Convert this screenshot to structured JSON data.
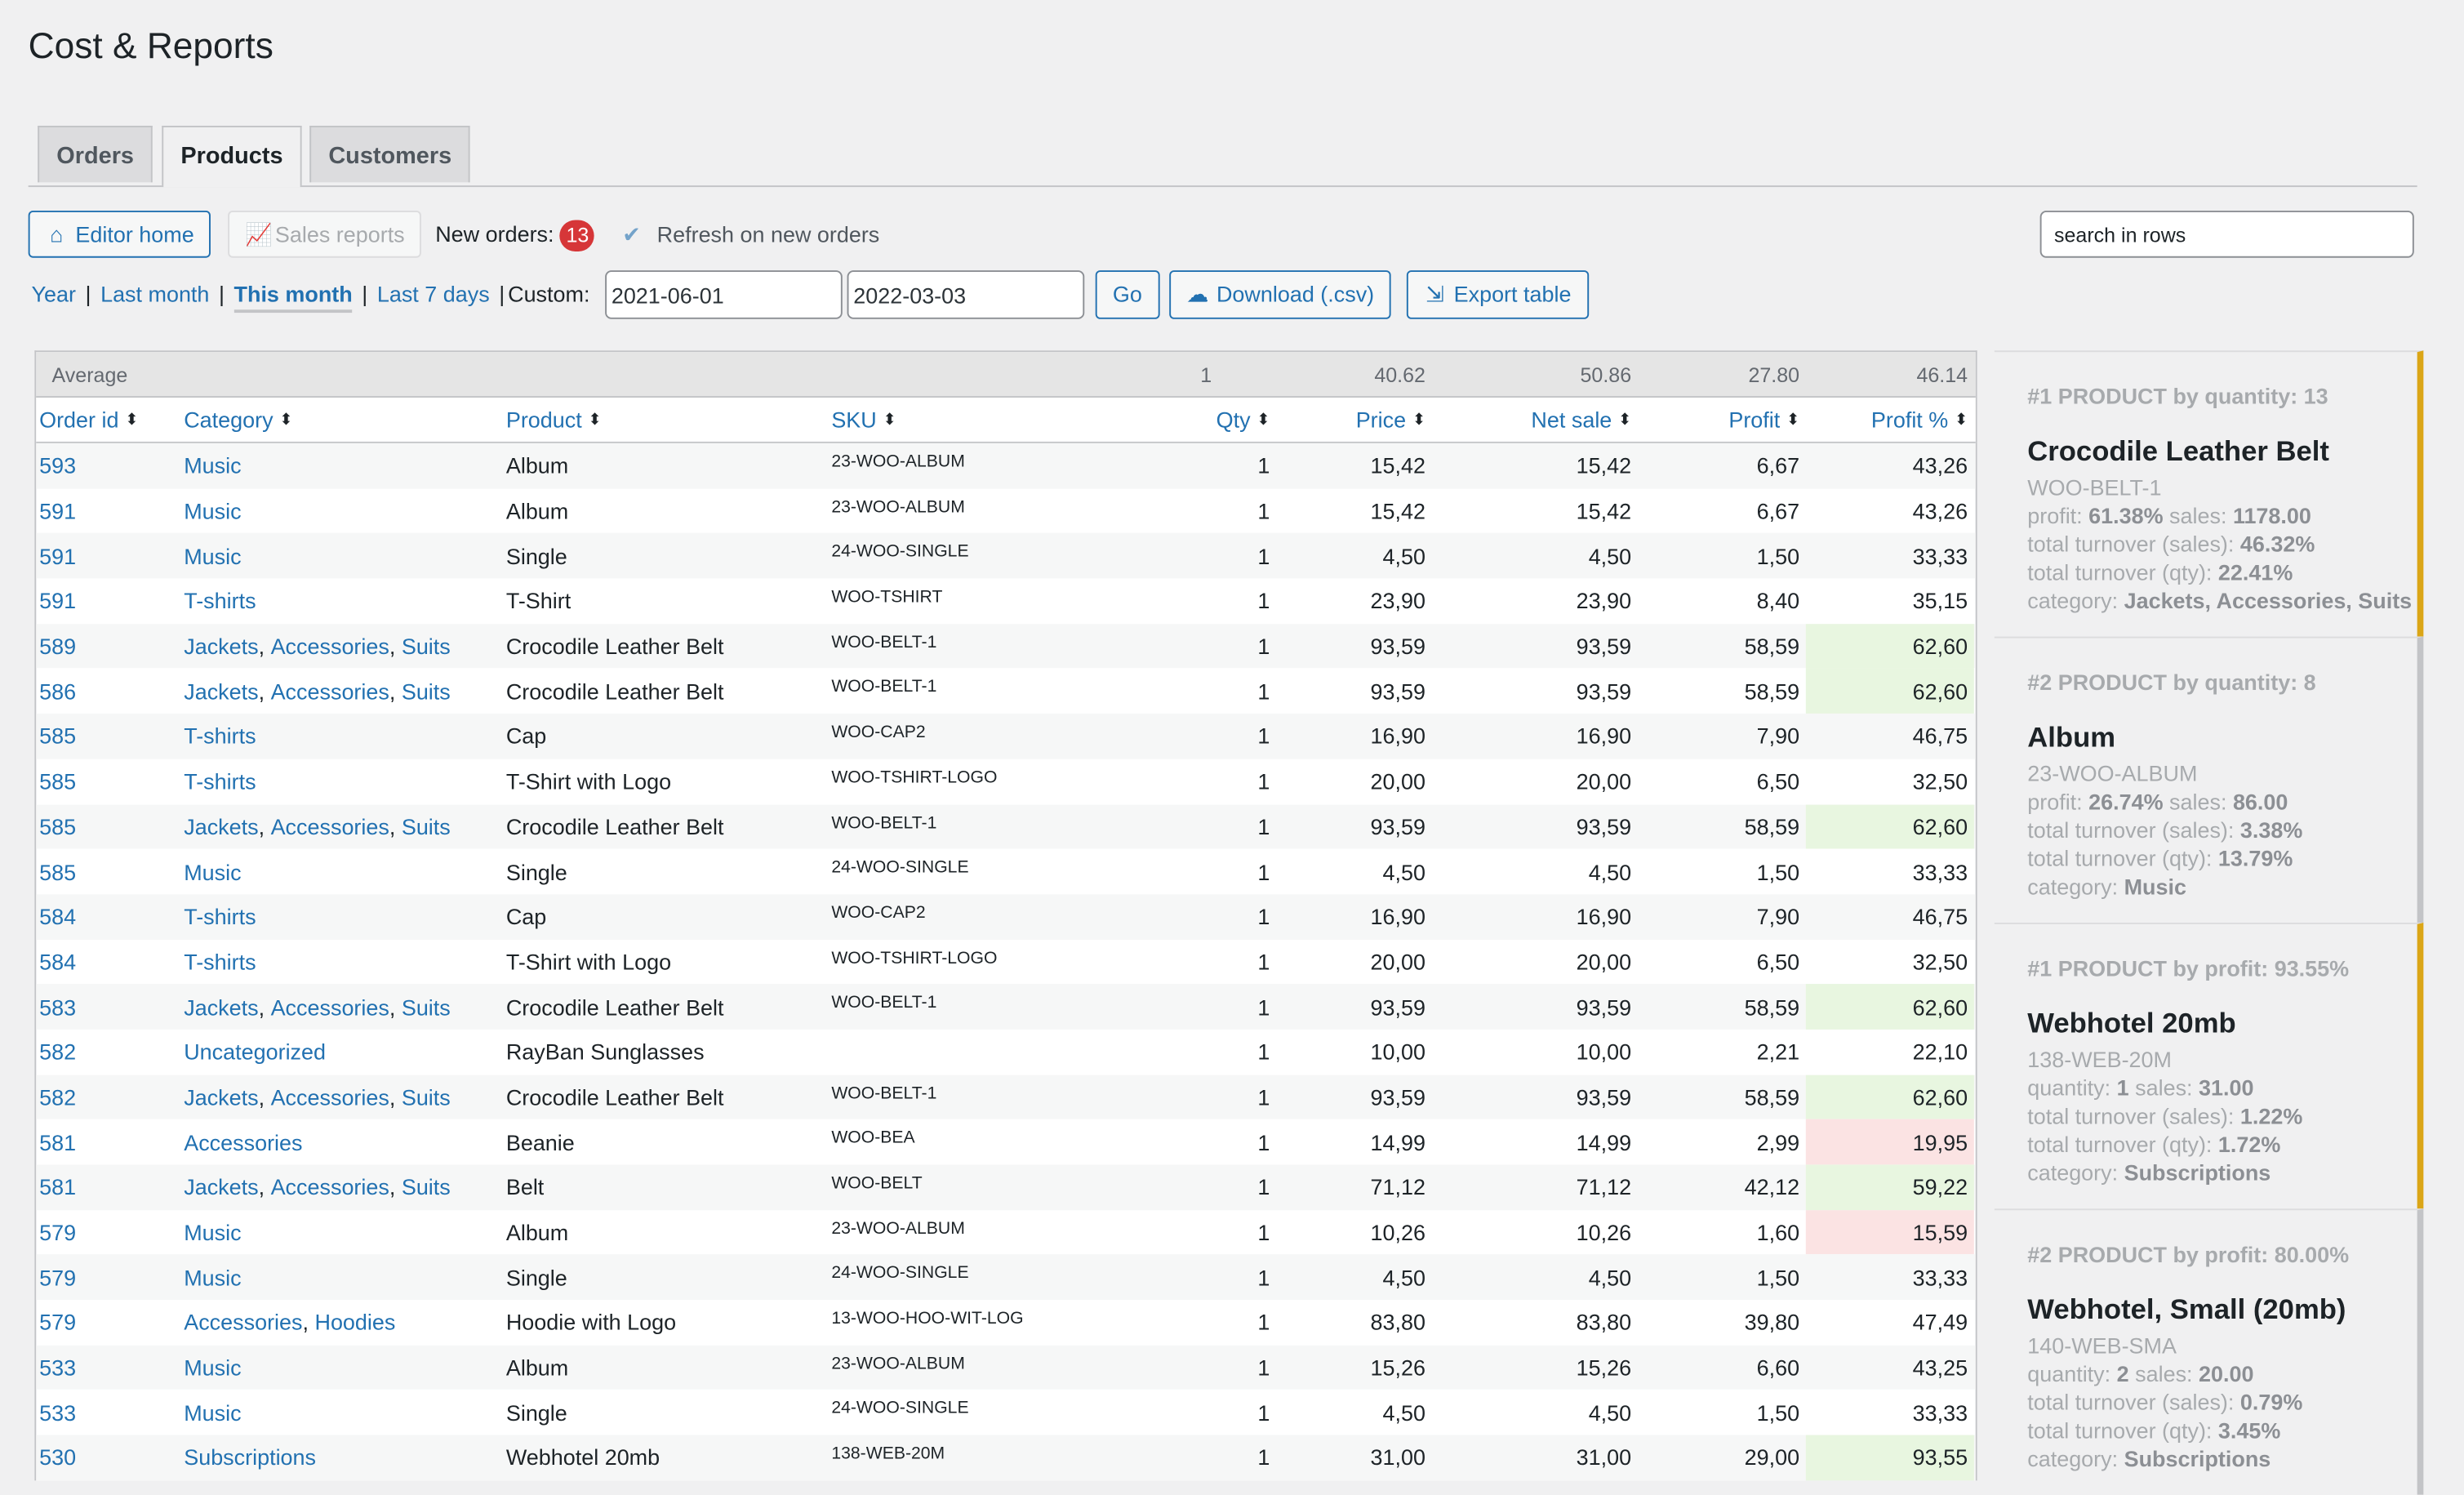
{
  "page": {
    "title": "Cost & Reports"
  },
  "tabs": [
    {
      "label": "Orders"
    },
    {
      "label": "Products"
    },
    {
      "label": "Customers"
    }
  ],
  "toolbar": {
    "editor_home": "Editor home",
    "sales_reports": "Sales reports",
    "new_orders_label": "New orders:",
    "new_orders_count": "13",
    "refresh_label": "Refresh on new orders",
    "search_placeholder": "search in rows"
  },
  "ranges": {
    "year": "Year",
    "last_month": "Last month",
    "this_month": "This month",
    "last_7_days": "Last 7 days",
    "custom_label": "Custom:",
    "date_from": "2021-06-01",
    "date_to": "2022-03-03",
    "go": "Go",
    "download": "Download (.csv)",
    "export": "Export table"
  },
  "table": {
    "average": {
      "label": "Average",
      "qty": "1",
      "price": "40.62",
      "net": "50.86",
      "profit": "27.80",
      "pct": "46.14"
    },
    "headers": {
      "id": "Order id",
      "category": "Category",
      "product": "Product",
      "sku": "SKU",
      "qty": "Qty",
      "price": "Price",
      "net": "Net sale",
      "profit": "Profit",
      "pct": "Profit %"
    },
    "rows": [
      {
        "id": "593",
        "categories": [
          "Music"
        ],
        "product": "Album",
        "sku": "23-WOO-ALBUM",
        "qty": "1",
        "price": "15,42",
        "net": "15,42",
        "profit": "6,67",
        "pct": "43,26",
        "hl": ""
      },
      {
        "id": "591",
        "categories": [
          "Music"
        ],
        "product": "Album",
        "sku": "23-WOO-ALBUM",
        "qty": "1",
        "price": "15,42",
        "net": "15,42",
        "profit": "6,67",
        "pct": "43,26",
        "hl": ""
      },
      {
        "id": "591",
        "categories": [
          "Music"
        ],
        "product": "Single",
        "sku": "24-WOO-SINGLE",
        "qty": "1",
        "price": "4,50",
        "net": "4,50",
        "profit": "1,50",
        "pct": "33,33",
        "hl": ""
      },
      {
        "id": "591",
        "categories": [
          "T-shirts"
        ],
        "product": "T-Shirt",
        "sku": "WOO-TSHIRT",
        "qty": "1",
        "price": "23,90",
        "net": "23,90",
        "profit": "8,40",
        "pct": "35,15",
        "hl": ""
      },
      {
        "id": "589",
        "categories": [
          "Jackets",
          "Accessories",
          "Suits"
        ],
        "product": "Crocodile Leather Belt",
        "sku": "WOO-BELT-1",
        "qty": "1",
        "price": "93,59",
        "net": "93,59",
        "profit": "58,59",
        "pct": "62,60",
        "hl": "hi"
      },
      {
        "id": "586",
        "categories": [
          "Jackets",
          "Accessories",
          "Suits"
        ],
        "product": "Crocodile Leather Belt",
        "sku": "WOO-BELT-1",
        "qty": "1",
        "price": "93,59",
        "net": "93,59",
        "profit": "58,59",
        "pct": "62,60",
        "hl": "hi"
      },
      {
        "id": "585",
        "categories": [
          "T-shirts"
        ],
        "product": "Cap",
        "sku": "WOO-CAP2",
        "qty": "1",
        "price": "16,90",
        "net": "16,90",
        "profit": "7,90",
        "pct": "46,75",
        "hl": ""
      },
      {
        "id": "585",
        "categories": [
          "T-shirts"
        ],
        "product": "T-Shirt with Logo",
        "sku": "WOO-TSHIRT-LOGO",
        "qty": "1",
        "price": "20,00",
        "net": "20,00",
        "profit": "6,50",
        "pct": "32,50",
        "hl": ""
      },
      {
        "id": "585",
        "categories": [
          "Jackets",
          "Accessories",
          "Suits"
        ],
        "product": "Crocodile Leather Belt",
        "sku": "WOO-BELT-1",
        "qty": "1",
        "price": "93,59",
        "net": "93,59",
        "profit": "58,59",
        "pct": "62,60",
        "hl": "hi"
      },
      {
        "id": "585",
        "categories": [
          "Music"
        ],
        "product": "Single",
        "sku": "24-WOO-SINGLE",
        "qty": "1",
        "price": "4,50",
        "net": "4,50",
        "profit": "1,50",
        "pct": "33,33",
        "hl": ""
      },
      {
        "id": "584",
        "categories": [
          "T-shirts"
        ],
        "product": "Cap",
        "sku": "WOO-CAP2",
        "qty": "1",
        "price": "16,90",
        "net": "16,90",
        "profit": "7,90",
        "pct": "46,75",
        "hl": ""
      },
      {
        "id": "584",
        "categories": [
          "T-shirts"
        ],
        "product": "T-Shirt with Logo",
        "sku": "WOO-TSHIRT-LOGO",
        "qty": "1",
        "price": "20,00",
        "net": "20,00",
        "profit": "6,50",
        "pct": "32,50",
        "hl": ""
      },
      {
        "id": "583",
        "categories": [
          "Jackets",
          "Accessories",
          "Suits"
        ],
        "product": "Crocodile Leather Belt",
        "sku": "WOO-BELT-1",
        "qty": "1",
        "price": "93,59",
        "net": "93,59",
        "profit": "58,59",
        "pct": "62,60",
        "hl": "hi"
      },
      {
        "id": "582",
        "categories": [
          "Uncategorized"
        ],
        "product": "RayBan Sunglasses",
        "sku": "",
        "qty": "1",
        "price": "10,00",
        "net": "10,00",
        "profit": "2,21",
        "pct": "22,10",
        "hl": ""
      },
      {
        "id": "582",
        "categories": [
          "Jackets",
          "Accessories",
          "Suits"
        ],
        "product": "Crocodile Leather Belt",
        "sku": "WOO-BELT-1",
        "qty": "1",
        "price": "93,59",
        "net": "93,59",
        "profit": "58,59",
        "pct": "62,60",
        "hl": "hi"
      },
      {
        "id": "581",
        "categories": [
          "Accessories"
        ],
        "product": "Beanie",
        "sku": "WOO-BEA",
        "qty": "1",
        "price": "14,99",
        "net": "14,99",
        "profit": "2,99",
        "pct": "19,95",
        "hl": "lo"
      },
      {
        "id": "581",
        "categories": [
          "Jackets",
          "Accessories",
          "Suits"
        ],
        "product": "Belt",
        "sku": "WOO-BELT",
        "qty": "1",
        "price": "71,12",
        "net": "71,12",
        "profit": "42,12",
        "pct": "59,22",
        "hl": "hi"
      },
      {
        "id": "579",
        "categories": [
          "Music"
        ],
        "product": "Album",
        "sku": "23-WOO-ALBUM",
        "qty": "1",
        "price": "10,26",
        "net": "10,26",
        "profit": "1,60",
        "pct": "15,59",
        "hl": "lo"
      },
      {
        "id": "579",
        "categories": [
          "Music"
        ],
        "product": "Single",
        "sku": "24-WOO-SINGLE",
        "qty": "1",
        "price": "4,50",
        "net": "4,50",
        "profit": "1,50",
        "pct": "33,33",
        "hl": ""
      },
      {
        "id": "579",
        "categories": [
          "Accessories",
          "Hoodies"
        ],
        "product": "Hoodie with Logo",
        "sku": "13-WOO-HOO-WIT-LOG",
        "qty": "1",
        "price": "83,80",
        "net": "83,80",
        "profit": "39,80",
        "pct": "47,49",
        "hl": ""
      },
      {
        "id": "533",
        "categories": [
          "Music"
        ],
        "product": "Album",
        "sku": "23-WOO-ALBUM",
        "qty": "1",
        "price": "15,26",
        "net": "15,26",
        "profit": "6,60",
        "pct": "43,25",
        "hl": ""
      },
      {
        "id": "533",
        "categories": [
          "Music"
        ],
        "product": "Single",
        "sku": "24-WOO-SINGLE",
        "qty": "1",
        "price": "4,50",
        "net": "4,50",
        "profit": "1,50",
        "pct": "33,33",
        "hl": ""
      },
      {
        "id": "530",
        "categories": [
          "Subscriptions"
        ],
        "product": "Webhotel 20mb",
        "sku": "138-WEB-20M",
        "qty": "1",
        "price": "31,00",
        "net": "31,00",
        "profit": "29,00",
        "pct": "93,55",
        "hl": "hi"
      }
    ]
  },
  "top_products": [
    {
      "heading": "#1 PRODUCT by quantity: 13",
      "name": "Crocodile Leather Belt",
      "sku": "WOO-BELT-1",
      "lines": [
        {
          "prefix": "profit: ",
          "v1": "61.38%",
          "mid": " sales: ",
          "v2": "1178.00"
        },
        {
          "prefix": "total turnover (sales): ",
          "v1": "46.32%",
          "mid": "",
          "v2": ""
        },
        {
          "prefix": "total turnover (qty): ",
          "v1": "22.41%",
          "mid": "",
          "v2": ""
        },
        {
          "prefix": "category: ",
          "v1": "Jackets, Accessories, Suits",
          "mid": "",
          "v2": ""
        }
      ],
      "accent": "gold"
    },
    {
      "heading": "#2 PRODUCT by quantity: 8",
      "name": "Album",
      "sku": "23-WOO-ALBUM",
      "lines": [
        {
          "prefix": "profit: ",
          "v1": "26.74%",
          "mid": " sales: ",
          "v2": "86.00"
        },
        {
          "prefix": "total turnover (sales): ",
          "v1": "3.38%",
          "mid": "",
          "v2": ""
        },
        {
          "prefix": "total turnover (qty): ",
          "v1": "13.79%",
          "mid": "",
          "v2": ""
        },
        {
          "prefix": "category: ",
          "v1": "Music",
          "mid": "",
          "v2": ""
        }
      ],
      "accent": "gray"
    },
    {
      "heading": "#1 PRODUCT by profit: 93.55%",
      "name": "Webhotel 20mb",
      "sku": "138-WEB-20M",
      "lines": [
        {
          "prefix": "quantity: ",
          "v1": "1",
          "mid": " sales: ",
          "v2": "31.00"
        },
        {
          "prefix": "total turnover (sales): ",
          "v1": "1.22%",
          "mid": "",
          "v2": ""
        },
        {
          "prefix": "total turnover (qty): ",
          "v1": "1.72%",
          "mid": "",
          "v2": ""
        },
        {
          "prefix": "category: ",
          "v1": "Subscriptions",
          "mid": "",
          "v2": ""
        }
      ],
      "accent": "gold"
    },
    {
      "heading": "#2 PRODUCT by profit: 80.00%",
      "name": "Webhotel, Small (20mb)",
      "sku": "140-WEB-SMA",
      "lines": [
        {
          "prefix": "quantity: ",
          "v1": "2",
          "mid": " sales: ",
          "v2": "20.00"
        },
        {
          "prefix": "total turnover (sales): ",
          "v1": "0.79%",
          "mid": "",
          "v2": ""
        },
        {
          "prefix": "total turnover (qty): ",
          "v1": "3.45%",
          "mid": "",
          "v2": ""
        },
        {
          "prefix": "category: ",
          "v1": "Subscriptions",
          "mid": "",
          "v2": ""
        }
      ],
      "accent": "gray"
    }
  ],
  "colors": {
    "link": "#2271b1",
    "accent_gold": "#dba617",
    "good": "#e8f6e0",
    "bad": "#fbe3e3",
    "badge": "#d63638"
  },
  "icons": {
    "editor_home": "home-icon",
    "sales_reports": "chart-icon",
    "download": "cloud-download-icon",
    "export": "export-file-icon",
    "sort": "sort-icon",
    "refresh": "checkbox-check-icon"
  }
}
